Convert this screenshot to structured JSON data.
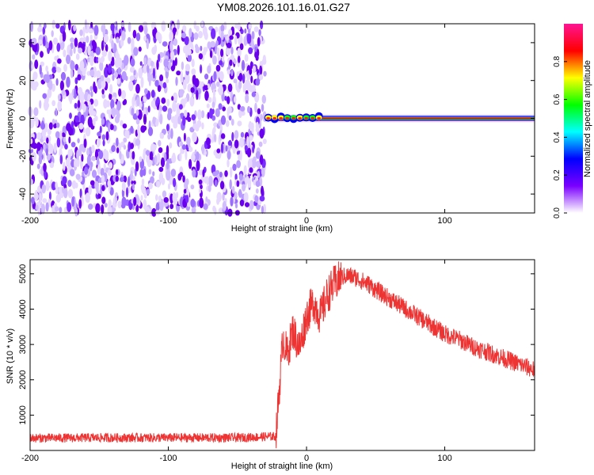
{
  "title": "YM08.2026.101.16.01.G27",
  "charts": [
    {
      "type": "heatmap",
      "name": "spectrogram",
      "xlabel": "Height of straight line (km)",
      "ylabel": "Frequency (Hz)",
      "xlim": [
        -200,
        165
      ],
      "ylim": [
        -50,
        50
      ],
      "xticks": [
        -200,
        -100,
        0,
        100
      ],
      "yticks": [
        -40,
        -20,
        0,
        20,
        40
      ],
      "noise_region_x": [
        -200,
        -30
      ],
      "signal_line": {
        "freq": 0,
        "x_start": -30,
        "x_end": 165,
        "burst_region_x": [
          -30,
          10
        ],
        "amplitude": 1.0
      },
      "colorbar": {
        "label": "Normalized spectral amplitude",
        "range": [
          0,
          1
        ],
        "ticks": [
          0.0,
          0.2,
          0.4,
          0.6,
          0.8
        ],
        "colors": [
          "#ffffff",
          "#7a00ff",
          "#0000ff",
          "#00ffff",
          "#00ff00",
          "#ffff00",
          "#ff0000",
          "#ff1493"
        ]
      }
    },
    {
      "type": "line",
      "name": "snr",
      "xlabel": "Height of straight line (km)",
      "ylabel": "SNR (10 * v/v)",
      "xlim": [
        -200,
        165
      ],
      "ylim": [
        0,
        5400
      ],
      "xticks": [
        -200,
        -100,
        0,
        100
      ],
      "yticks": [
        1000,
        2000,
        3000,
        4000,
        5000
      ],
      "color": "#ee3333",
      "series": [
        {
          "x": [
            -200,
            -150,
            -100,
            -50,
            -22,
            -20,
            -17,
            -14,
            -10,
            -5,
            0,
            5,
            10,
            15,
            20,
            25,
            30,
            35,
            40,
            45,
            50,
            60,
            70,
            80,
            90,
            100,
            110,
            120,
            130,
            140,
            150,
            160,
            165
          ],
          "y": [
            350,
            360,
            360,
            360,
            400,
            1600,
            3200,
            2700,
            3400,
            2900,
            3800,
            4200,
            3800,
            4400,
            4700,
            4900,
            4950,
            4900,
            4800,
            4700,
            4550,
            4300,
            4050,
            3800,
            3550,
            3300,
            3150,
            2950,
            2800,
            2650,
            2500,
            2350,
            2280
          ]
        }
      ]
    }
  ]
}
